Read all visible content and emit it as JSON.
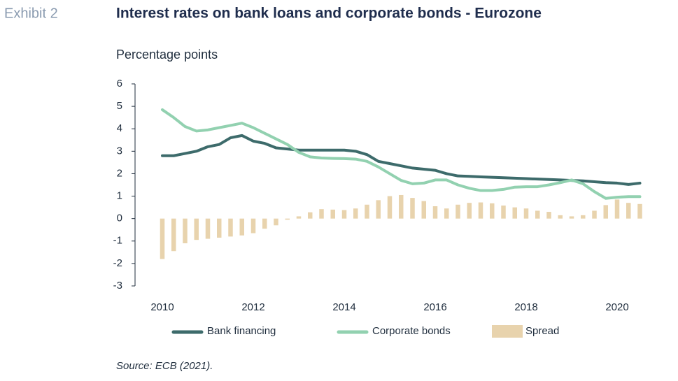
{
  "exhibit": "Exhibit 2",
  "chart_data": {
    "type": "line-bar",
    "title": "Interest rates on bank loans and corporate bonds - Eurozone",
    "y_label": "Percentage points",
    "source": "Source: ECB (2021).",
    "x": [
      2010,
      2010.25,
      2010.5,
      2010.75,
      2011,
      2011.25,
      2011.5,
      2011.75,
      2012,
      2012.25,
      2012.5,
      2012.75,
      2013,
      2013.25,
      2013.5,
      2013.75,
      2014,
      2014.25,
      2014.5,
      2014.75,
      2015,
      2015.25,
      2015.5,
      2015.75,
      2016,
      2016.25,
      2016.5,
      2016.75,
      2017,
      2017.25,
      2017.5,
      2017.75,
      2018,
      2018.25,
      2018.5,
      2018.75,
      2019,
      2019.25,
      2019.5,
      2019.75,
      2020,
      2020.25,
      2020.5
    ],
    "series": [
      {
        "name": "Bank financing",
        "color": "#3d6b6b",
        "kind": "line",
        "values": [
          2.8,
          2.8,
          2.9,
          3.0,
          3.2,
          3.3,
          3.6,
          3.7,
          3.45,
          3.35,
          3.15,
          3.1,
          3.05,
          3.05,
          3.05,
          3.05,
          3.05,
          3.0,
          2.85,
          2.55,
          2.45,
          2.35,
          2.25,
          2.2,
          2.15,
          2.0,
          1.9,
          1.88,
          1.86,
          1.84,
          1.82,
          1.8,
          1.78,
          1.76,
          1.74,
          1.72,
          1.7,
          1.68,
          1.64,
          1.6,
          1.58,
          1.52,
          1.58
        ]
      },
      {
        "name": "Corporate bonds",
        "color": "#92d1b0",
        "kind": "line",
        "values": [
          4.85,
          4.5,
          4.1,
          3.9,
          3.95,
          4.05,
          4.15,
          4.25,
          4.05,
          3.8,
          3.55,
          3.3,
          2.95,
          2.75,
          2.7,
          2.68,
          2.67,
          2.65,
          2.55,
          2.3,
          2.0,
          1.7,
          1.55,
          1.58,
          1.72,
          1.72,
          1.5,
          1.35,
          1.25,
          1.25,
          1.3,
          1.4,
          1.42,
          1.42,
          1.5,
          1.6,
          1.72,
          1.55,
          1.2,
          0.9,
          0.95,
          0.98,
          0.98
        ]
      },
      {
        "name": "Spread",
        "color": "#e8d3ad",
        "kind": "bar",
        "values": [
          -1.8,
          -1.45,
          -1.1,
          -0.95,
          -0.9,
          -0.85,
          -0.8,
          -0.75,
          -0.65,
          -0.45,
          -0.3,
          -0.05,
          0.1,
          0.28,
          0.42,
          0.4,
          0.38,
          0.45,
          0.62,
          0.82,
          1.0,
          1.05,
          0.92,
          0.78,
          0.55,
          0.45,
          0.62,
          0.7,
          0.72,
          0.68,
          0.58,
          0.5,
          0.45,
          0.35,
          0.3,
          0.15,
          0.1,
          0.15,
          0.35,
          0.6,
          0.85,
          0.7,
          0.65
        ]
      }
    ],
    "xlim": [
      2009.4,
      2020.8
    ],
    "xticks": [
      2010,
      2012,
      2014,
      2016,
      2018,
      2020
    ],
    "ylim": [
      -3,
      6
    ],
    "yticks": [
      -3,
      -2,
      -1,
      0,
      1,
      2,
      3,
      4,
      5,
      6
    ],
    "grid": false
  }
}
